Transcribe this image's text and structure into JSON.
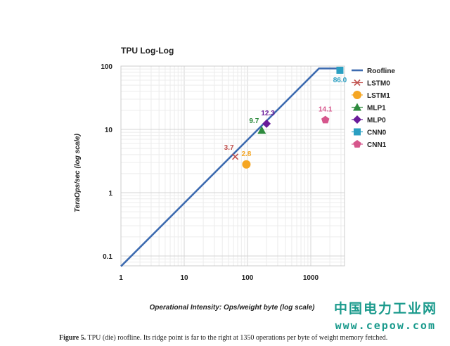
{
  "chart_data": {
    "type": "line",
    "title": "TPU Log-Log",
    "xlabel": "Operational Intensity: Ops/weight byte (log scale)",
    "ylabel": "TeraOps/sec (log scale)",
    "xscale": "log",
    "yscale": "log",
    "xlim": [
      1,
      3000
    ],
    "ylim": [
      0.06,
      100
    ],
    "x_ticks": [
      1,
      10,
      100,
      1000
    ],
    "x_tick_labels": [
      "1",
      "10",
      "100",
      "1000"
    ],
    "y_ticks": [
      0.1,
      1,
      10,
      100
    ],
    "y_tick_labels": [
      "0.1",
      "1",
      "10",
      "100"
    ],
    "grid": true,
    "legend_position": "right",
    "series": [
      {
        "name": "Roofline",
        "kind": "line",
        "color": "#3d6bb0",
        "x": [
          1,
          1350,
          2700
        ],
        "y": [
          0.0686,
          92,
          92
        ]
      },
      {
        "name": "LSTM0",
        "kind": "point",
        "marker": "x",
        "color": "#c0504d",
        "x": 64,
        "y": 3.7,
        "label": "3.7",
        "label_color": "#c0504d"
      },
      {
        "name": "LSTM1",
        "kind": "point",
        "marker": "circle",
        "color": "#f5a623",
        "x": 96,
        "y": 2.8,
        "label": "2.8",
        "label_color": "#f5a623"
      },
      {
        "name": "MLP1",
        "kind": "point",
        "marker": "triangle",
        "color": "#2e8b3e",
        "x": 168,
        "y": 9.7,
        "label": "9.7",
        "label_color": "#2e8b3e"
      },
      {
        "name": "MLP0",
        "kind": "point",
        "marker": "diamond",
        "color": "#6a1b9a",
        "x": 200,
        "y": 12.3,
        "label": "12.3",
        "label_color": "#6a1b9a"
      },
      {
        "name": "CNN0",
        "kind": "point",
        "marker": "square",
        "color": "#2a9fc2",
        "x": 2888,
        "y": 86.0,
        "label": "86.0",
        "label_color": "#2a9fc2"
      },
      {
        "name": "CNN1",
        "kind": "point",
        "marker": "pentagon",
        "color": "#d6568c",
        "x": 1700,
        "y": 14.1,
        "label": "14.1",
        "label_color": "#d6568c"
      }
    ]
  },
  "caption": {
    "figure_label": "Figure 5.",
    "text": " TPU (die) roofline. Its ridge point is far to the right at 1350 operations per byte of weight memory fetched."
  },
  "watermark": {
    "chinese": "中国电力工业网",
    "url": "www.cepow.com"
  }
}
